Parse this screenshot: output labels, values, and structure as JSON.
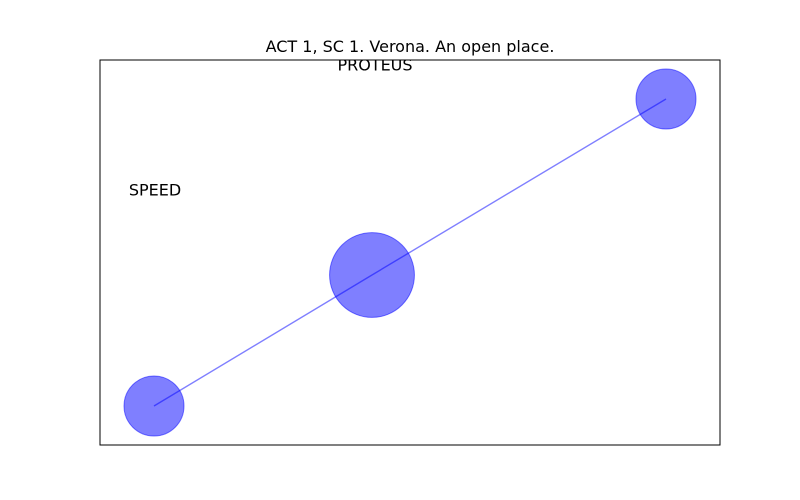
{
  "figure": {
    "title": "ACT 1, SC 1. Verona. An open place."
  },
  "network": {
    "node_color": "#0000ff",
    "node_alpha": 0.5,
    "edge_color": "#0000ff",
    "nodes": [
      {
        "id": "valentine",
        "label": "",
        "weight": 1.0
      },
      {
        "id": "speed",
        "label": "SPEED",
        "weight": 1.0
      },
      {
        "id": "proteus",
        "label": "PROTEUS",
        "weight": 2.0
      }
    ],
    "edges": [
      {
        "from": "valentine",
        "to": "proteus"
      },
      {
        "from": "proteus",
        "to": "speed"
      }
    ]
  }
}
